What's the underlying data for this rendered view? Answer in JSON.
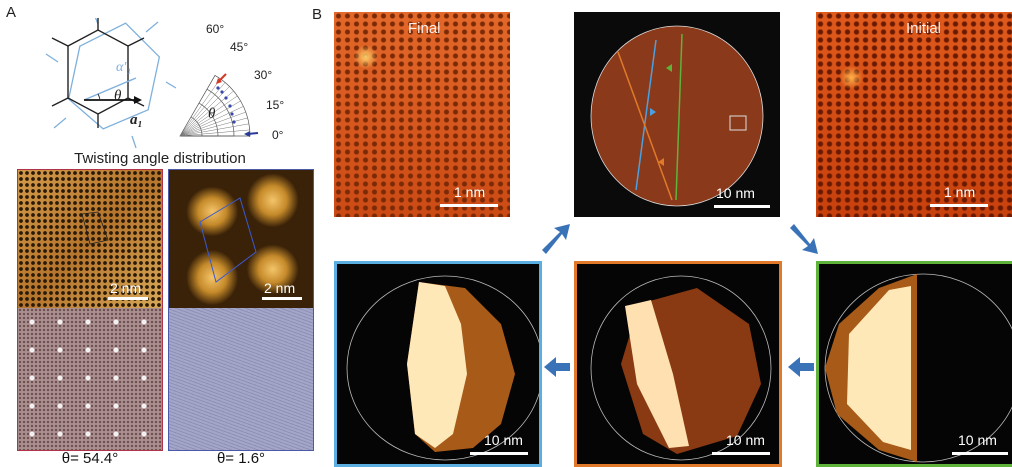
{
  "panelA": {
    "letter": "A",
    "lattice_labels": {
      "a1_prime": "α′₁",
      "a1": "a₁",
      "theta": "θ"
    },
    "angle_ticks": [
      "60°",
      "45°",
      "30°",
      "15°",
      "0°"
    ],
    "fan_theta": "θ",
    "distribution_title": "Twisting angle distribution",
    "left_scale": "2 nm",
    "right_scale": "2 nm",
    "left_caption": "θ= 54.4°",
    "right_caption": "θ= 1.6°"
  },
  "panelB": {
    "letter": "B",
    "final_label": "Final",
    "initial_label": "Initial",
    "final_scale": "1 nm",
    "initial_scale": "1 nm",
    "center_scale": "10 nm",
    "bottom_scales": [
      "10 nm",
      "10 nm",
      "10 nm"
    ]
  },
  "colors": {
    "afm_orange": "#d2561a",
    "blue_frame": "#5aaee0",
    "orange_frame": "#e07a2a",
    "green_frame": "#5fb33a",
    "arrow_blue": "#3a72b8",
    "left_frame_red": "#b2324a",
    "right_frame_blue": "#4a5aa8"
  }
}
